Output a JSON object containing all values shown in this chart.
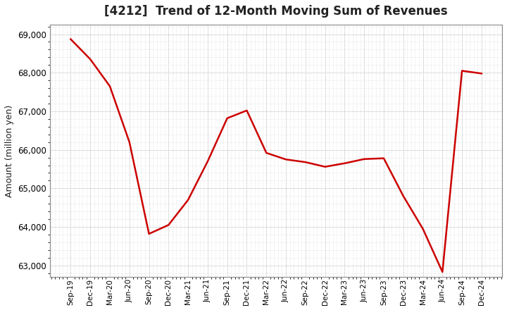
{
  "title": "[4212]  Trend of 12-Month Moving Sum of Revenues",
  "ylabel": "Amount (million yen)",
  "line_color": "#cc0000",
  "bg_color": "#ffffff",
  "plot_bg_color": "#ffffff",
  "grid_color": "#999999",
  "title_color": "#222222",
  "ylim": [
    62700,
    69250
  ],
  "yticks": [
    63000,
    64000,
    65000,
    66000,
    67000,
    68000,
    69000
  ],
  "x_labels": [
    "Sep-19",
    "Dec-19",
    "Mar-20",
    "Jun-20",
    "Sep-20",
    "Dec-20",
    "Mar-21",
    "Jun-21",
    "Sep-21",
    "Dec-21",
    "Mar-22",
    "Jun-22",
    "Sep-22",
    "Dec-22",
    "Mar-23",
    "Jun-23",
    "Sep-23",
    "Dec-23",
    "Mar-24",
    "Jun-24",
    "Sep-24",
    "Dec-24"
  ],
  "values": [
    68870,
    68350,
    67650,
    66200,
    63820,
    64050,
    64700,
    65700,
    66820,
    67020,
    65920,
    65750,
    65680,
    65560,
    65650,
    65760,
    65780,
    64800,
    63950,
    62830,
    68050,
    67980
  ]
}
